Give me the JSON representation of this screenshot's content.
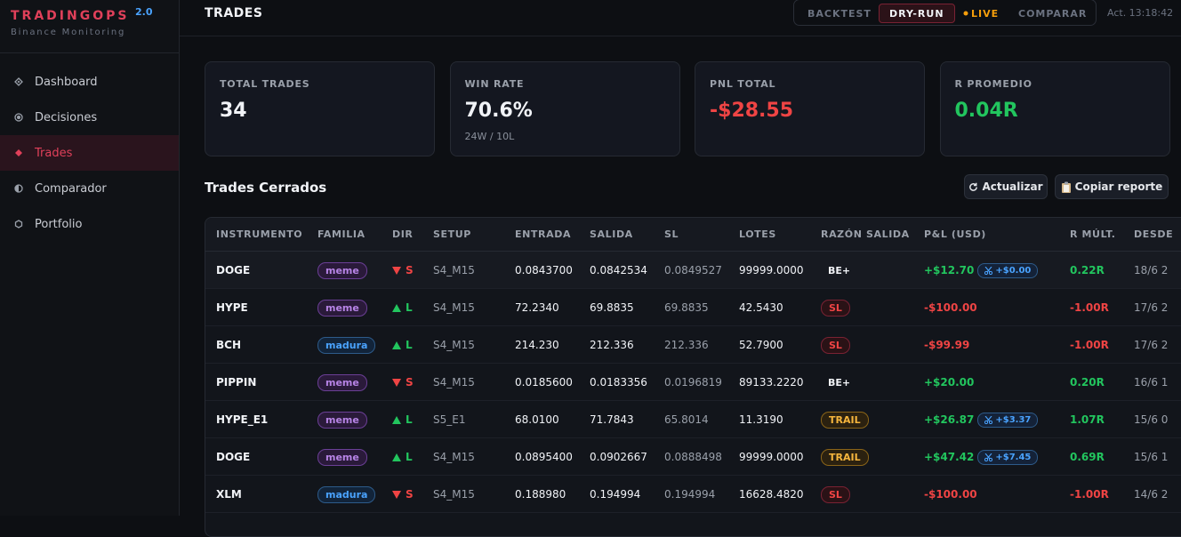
{
  "brand": {
    "name": "TRADINGOPS",
    "version": "2.0",
    "subtitle": "Binance Monitoring"
  },
  "nav": [
    {
      "label": "Dashboard"
    },
    {
      "label": "Decisiones"
    },
    {
      "label": "Trades",
      "active": true
    },
    {
      "label": "Comparador"
    },
    {
      "label": "Portfolio"
    }
  ],
  "header": {
    "title": "TRADES",
    "modes": [
      "BACKTEST",
      "DRY-RUN",
      "LIVE",
      "COMPARAR"
    ],
    "active_mode": 1,
    "updated": "Act. 13:18:42"
  },
  "stats": [
    {
      "label": "TOTAL TRADES",
      "value": "34",
      "color": "#f1f3f7"
    },
    {
      "label": "WIN RATE",
      "value": "70.6%",
      "sub": "24W / 10L",
      "color": "#f1f3f7"
    },
    {
      "label": "PNL TOTAL",
      "value": "-$28.55",
      "color": "#ef4444"
    },
    {
      "label": "R PROMEDIO",
      "value": "0.04R",
      "color": "#22c55e"
    }
  ],
  "section": {
    "title": "Trades Cerrados",
    "buttons": [
      "Actualizar",
      "Copiar reporte"
    ]
  },
  "table": {
    "columns": [
      "INSTRUMENTO",
      "FAMILIA",
      "DIR",
      "SETUP",
      "ENTRADA",
      "SALIDA",
      "SL",
      "LOTES",
      "RAZÓN SALIDA",
      "P&L (USD)",
      "R MÚLT.",
      "DESDE"
    ],
    "rows": [
      {
        "instrument": "DOGE",
        "family": "meme",
        "dir": "S",
        "setup": "S4_M15",
        "entry": "0.0843700",
        "exit": "0.0842534",
        "sl": "0.0849527",
        "lots": "99999.0000",
        "reason": "BE+",
        "pnl": "+$12.70",
        "rebate": "+$0.00",
        "r": "0.22R",
        "since": "18/6 2"
      },
      {
        "instrument": "HYPE",
        "family": "meme",
        "dir": "L",
        "setup": "S4_M15",
        "entry": "72.2340",
        "exit": "69.8835",
        "sl": "69.8835",
        "lots": "42.5430",
        "reason": "SL",
        "pnl": "-$100.00",
        "r": "-1.00R",
        "since": "17/6 2"
      },
      {
        "instrument": "BCH",
        "family": "madura",
        "dir": "L",
        "setup": "S4_M15",
        "entry": "214.230",
        "exit": "212.336",
        "sl": "212.336",
        "lots": "52.7900",
        "reason": "SL",
        "pnl": "-$99.99",
        "r": "-1.00R",
        "since": "17/6 2"
      },
      {
        "instrument": "PIPPIN",
        "family": "meme",
        "dir": "S",
        "setup": "S4_M15",
        "entry": "0.0185600",
        "exit": "0.0183356",
        "sl": "0.0196819",
        "lots": "89133.2220",
        "reason": "BE+",
        "pnl": "+$20.00",
        "r": "0.20R",
        "since": "16/6 1"
      },
      {
        "instrument": "HYPE_E1",
        "family": "meme",
        "dir": "L",
        "setup": "S5_E1",
        "entry": "68.0100",
        "exit": "71.7843",
        "sl": "65.8014",
        "lots": "11.3190",
        "reason": "TRAIL",
        "pnl": "+$26.87",
        "rebate": "+$3.37",
        "r": "1.07R",
        "since": "15/6 0"
      },
      {
        "instrument": "DOGE",
        "family": "meme",
        "dir": "L",
        "setup": "S4_M15",
        "entry": "0.0895400",
        "exit": "0.0902667",
        "sl": "0.0888498",
        "lots": "99999.0000",
        "reason": "TRAIL",
        "pnl": "+$47.42",
        "rebate": "+$7.45",
        "r": "0.69R",
        "since": "15/6 1"
      },
      {
        "instrument": "XLM",
        "family": "madura",
        "dir": "S",
        "setup": "S4_M15",
        "entry": "0.188980",
        "exit": "0.194994",
        "sl": "0.194994",
        "lots": "16628.4820",
        "reason": "SL",
        "pnl": "-$100.00",
        "r": "-1.00R",
        "since": "14/6 2"
      }
    ]
  }
}
